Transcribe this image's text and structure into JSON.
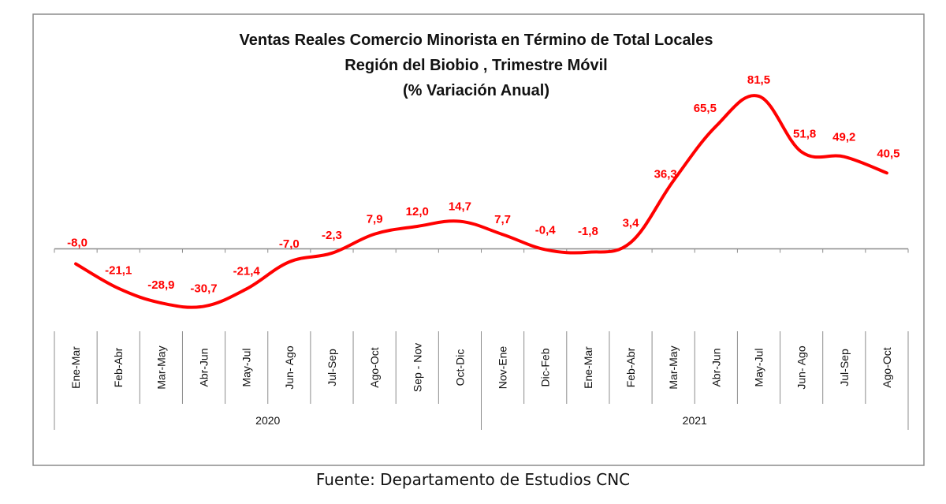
{
  "chart_data": {
    "type": "line",
    "title_lines": [
      "Ventas Reales Comercio Minorista  en Término de Total Locales",
      "Región del Biobio , Trimestre Móvil",
      "(% Variación Anual)"
    ],
    "categories": [
      "Ene-Mar",
      "Feb-Abr",
      "Mar-May",
      "Abr-Jun",
      "May-Jul",
      "Jun- Ago",
      "Jul-Sep",
      "Ago-Oct",
      "Sep - Nov",
      "Oct-Dic",
      "Nov-Ene",
      "Dic-Feb",
      "Ene-Mar",
      "Feb-Abr",
      "Mar-May",
      "Abr-Jun",
      "May-Jul",
      "Jun- Ago",
      "Jul-Sep",
      "Ago-Oct"
    ],
    "values": [
      -8.0,
      -21.1,
      -28.9,
      -30.7,
      -21.4,
      -7.0,
      -2.3,
      7.9,
      12.0,
      14.7,
      7.7,
      -0.4,
      -1.8,
      3.4,
      36.3,
      65.5,
      81.5,
      51.8,
      49.2,
      40.5
    ],
    "data_labels": [
      "-8,0",
      "-21,1",
      "-28,9",
      "-30,7",
      "-21,4",
      "-7,0",
      "-2,3",
      "7,9",
      "12,0",
      "14,7",
      "7,7",
      "-0,4",
      "-1,8",
      "3,4",
      "36,3",
      "65,5",
      "81,5",
      "51,8",
      "49,2",
      "40,5"
    ],
    "groups": [
      {
        "label": "2020",
        "count": 10
      },
      {
        "label": "2021",
        "count": 10
      }
    ],
    "line_color": "#ff0000",
    "label_color": "#ff0000",
    "ylim": [
      -35,
      85
    ],
    "grid": false
  },
  "source": "Fuente: Departamento de Estudios CNC"
}
